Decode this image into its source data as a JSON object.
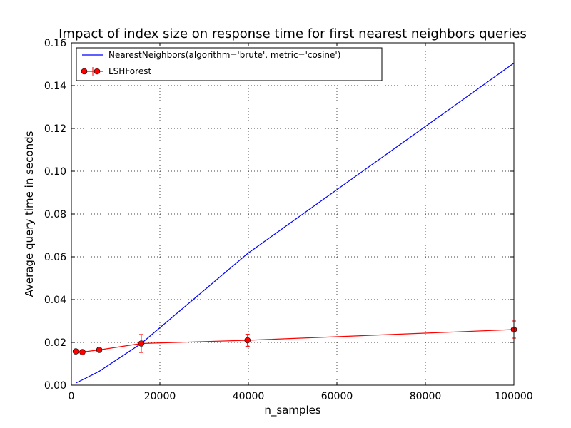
{
  "chart_data": {
    "type": "line",
    "title": "Impact of index size on response time for first nearest neighbors queries",
    "xlabel": "n_samples",
    "ylabel": "Average query time in seconds",
    "xlim": [
      0,
      100000
    ],
    "ylim": [
      0,
      0.16
    ],
    "xticks": [
      "0",
      "20000",
      "40000",
      "60000",
      "80000",
      "100000"
    ],
    "yticks": [
      "0.00",
      "0.02",
      "0.04",
      "0.06",
      "0.08",
      "0.10",
      "0.12",
      "0.14",
      "0.16"
    ],
    "grid": true,
    "legend_position": "top-left",
    "series": [
      {
        "name": "NearestNeighbors(algorithm='brute', metric='cosine')",
        "color": "#0000ff",
        "marker": "none",
        "x": [
          1000,
          2500,
          6300,
          15800,
          39800,
          100000
        ],
        "y": [
          0.001,
          0.0025,
          0.0065,
          0.0195,
          0.0615,
          0.1505
        ]
      },
      {
        "name": "LSHForest",
        "color": "#ff0000",
        "marker": "circle",
        "x": [
          1000,
          2500,
          6300,
          15800,
          39800,
          100000
        ],
        "y": [
          0.0158,
          0.0155,
          0.0165,
          0.0195,
          0.021,
          0.026
        ],
        "err": [
          0.0008,
          0.001,
          0.001,
          0.0042,
          0.0028,
          0.004
        ]
      }
    ]
  }
}
